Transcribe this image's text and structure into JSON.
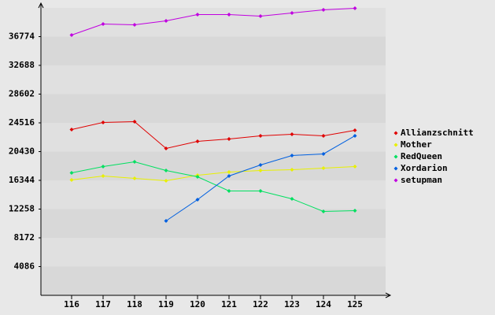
{
  "chart_data": {
    "type": "line",
    "categories": [
      "116",
      "117",
      "118",
      "119",
      "120",
      "121",
      "122",
      "123",
      "124",
      "125"
    ],
    "series": [
      {
        "name": "Allianzschnitt",
        "color": "#e00000",
        "values": [
          23565,
          24573,
          24685,
          20879,
          21886,
          22222,
          22670,
          22894,
          22670,
          23453
        ]
      },
      {
        "name": "Mother",
        "color": "#e8f000",
        "values": [
          16400,
          16960,
          16624,
          16289,
          17072,
          17520,
          17744,
          17856,
          18080,
          18304
        ]
      },
      {
        "name": "RedQueen",
        "color": "#00e060",
        "values": [
          17408,
          18304,
          18976,
          17744,
          16848,
          14833,
          14833,
          13714,
          11922,
          12035
        ]
      },
      {
        "name": "Xordarion",
        "color": "#0060e0",
        "values": [
          null,
          null,
          null,
          10579,
          13602,
          16960,
          18528,
          19874,
          20095,
          22670
        ]
      },
      {
        "name": "setupman",
        "color": "#c000e0",
        "values": [
          37000,
          38567,
          38455,
          39014,
          39910,
          39910,
          39686,
          40134,
          40582,
          40806
        ]
      }
    ],
    "ylim": [
      0,
      40860
    ],
    "yticks": [
      4086,
      8172,
      12258,
      16344,
      20430,
      24516,
      28602,
      32688,
      36774
    ],
    "grid": true,
    "legend": "right"
  }
}
